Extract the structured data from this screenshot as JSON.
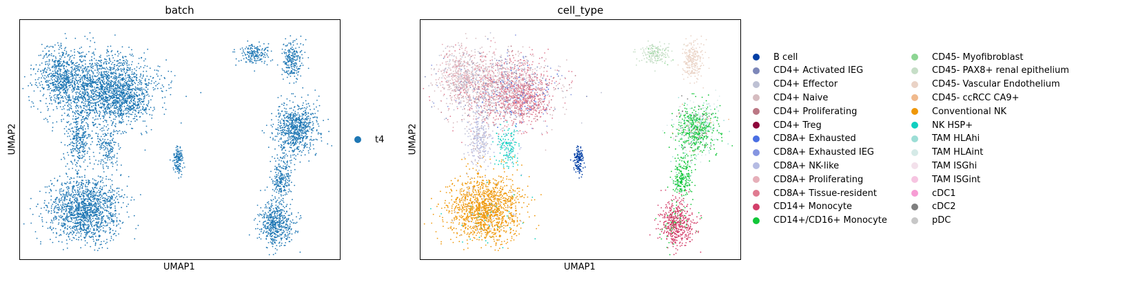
{
  "chart_data": [
    {
      "type": "scatter",
      "title": "batch",
      "xlabel": "UMAP1",
      "ylabel": "UMAP2",
      "legend": {
        "placement": "right",
        "entries": [
          {
            "label": "t4",
            "color": "#1f77b4"
          }
        ]
      },
      "grid": false
    },
    {
      "type": "scatter",
      "title": "cell_type",
      "xlabel": "UMAP1",
      "ylabel": "UMAP2",
      "grid": false,
      "legend": {
        "placement": "right",
        "columns": 2,
        "entries": [
          {
            "label": "B cell",
            "color": "#023fa5"
          },
          {
            "label": "CD4+ Activated IEG",
            "color": "#7d87b9"
          },
          {
            "label": "CD4+ Effector",
            "color": "#bec1d4"
          },
          {
            "label": "CD4+ Naive",
            "color": "#d6bcc0"
          },
          {
            "label": "CD4+ Proliferating",
            "color": "#bb7784"
          },
          {
            "label": "CD4+ Treg",
            "color": "#8e063b"
          },
          {
            "label": "CD8A+ Exhausted",
            "color": "#4a6fe3"
          },
          {
            "label": "CD8A+ Exhausted IEG",
            "color": "#8595e1"
          },
          {
            "label": "CD8A+ NK-like",
            "color": "#b5bbe3"
          },
          {
            "label": "CD8A+ Proliferating",
            "color": "#e6afb9"
          },
          {
            "label": "CD8A+ Tissue-resident",
            "color": "#e07b91"
          },
          {
            "label": "CD14+ Monocyte",
            "color": "#d33f6a"
          },
          {
            "label": "CD14+/CD16+ Monocyte",
            "color": "#11c638"
          },
          {
            "label": "CD45- Myofibroblast",
            "color": "#8dd593"
          },
          {
            "label": "CD45- PAX8+ renal epithelium",
            "color": "#c6dec7"
          },
          {
            "label": "CD45- Vascular Endothelium",
            "color": "#ead3c6"
          },
          {
            "label": "CD45- ccRCC CA9+",
            "color": "#f0b98d"
          },
          {
            "label": "Conventional NK",
            "color": "#ef9708"
          },
          {
            "label": "NK HSP+",
            "color": "#0fcfc0"
          },
          {
            "label": "TAM HLAhi",
            "color": "#9cded6"
          },
          {
            "label": "TAM HLAint",
            "color": "#d5eae7"
          },
          {
            "label": "TAM ISGhi",
            "color": "#f3e1eb"
          },
          {
            "label": "TAM ISGint",
            "color": "#f6c4e1"
          },
          {
            "label": "cDC1",
            "color": "#f79cd4"
          },
          {
            "label": "cDC2",
            "color": "#7f7f7f"
          },
          {
            "label": "pDC",
            "color": "#c7c7c7"
          }
        ]
      }
    }
  ]
}
